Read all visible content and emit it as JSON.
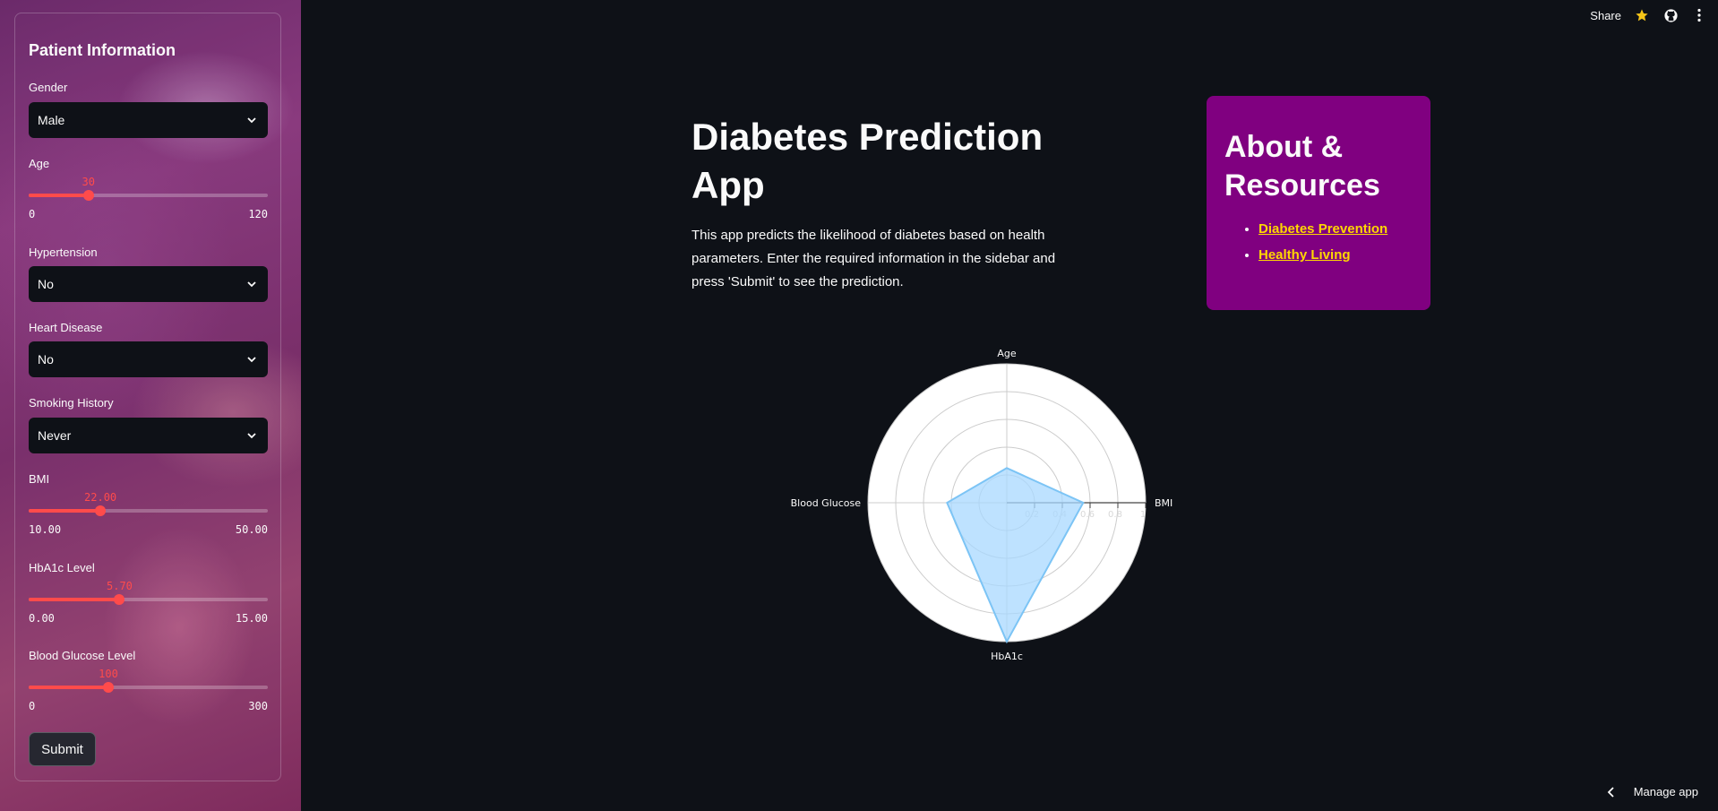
{
  "sidebar": {
    "title": "Patient Information",
    "gender": {
      "label": "Gender",
      "value": "Male"
    },
    "age": {
      "label": "Age",
      "value": "30",
      "min": "0",
      "max": "120",
      "fraction": 0.25
    },
    "hypertension": {
      "label": "Hypertension",
      "value": "No"
    },
    "heart_disease": {
      "label": "Heart Disease",
      "value": "No"
    },
    "smoking": {
      "label": "Smoking History",
      "value": "Never"
    },
    "bmi": {
      "label": "BMI",
      "value": "22.00",
      "min": "10.00",
      "max": "50.00",
      "fraction": 0.3
    },
    "hba1c": {
      "label": "HbA1c Level",
      "value": "5.70",
      "min": "0.00",
      "max": "15.00",
      "fraction": 0.38
    },
    "glucose": {
      "label": "Blood Glucose Level",
      "value": "100",
      "min": "0",
      "max": "300",
      "fraction": 0.3333
    },
    "submit_label": "Submit"
  },
  "toolbar": {
    "share_label": "Share"
  },
  "main": {
    "title": "Diabetes Prediction App",
    "description": "This app predicts the likelihood of diabetes based on health parameters. Enter the required information in the sidebar and press 'Submit' to see the prediction."
  },
  "about": {
    "title": "About & Resources",
    "links": [
      "Diabetes Prevention",
      "Healthy Living"
    ],
    "link_color": "#ffd700",
    "bg_color": "#800080"
  },
  "footer": {
    "manage_label": "Manage app"
  },
  "chart_data": {
    "type": "radar",
    "axes": [
      "Age",
      "BMI",
      "HbA1c",
      "Blood Glucose"
    ],
    "values": [
      0.25,
      0.55,
      1.0,
      0.43
    ],
    "radial_ticks": [
      "0.2",
      "0.4",
      "0.6",
      "0.8",
      "1"
    ],
    "radial_range": [
      0,
      1
    ],
    "fill_color": "#a8d8ff",
    "line_color": "#7cc4f5"
  }
}
